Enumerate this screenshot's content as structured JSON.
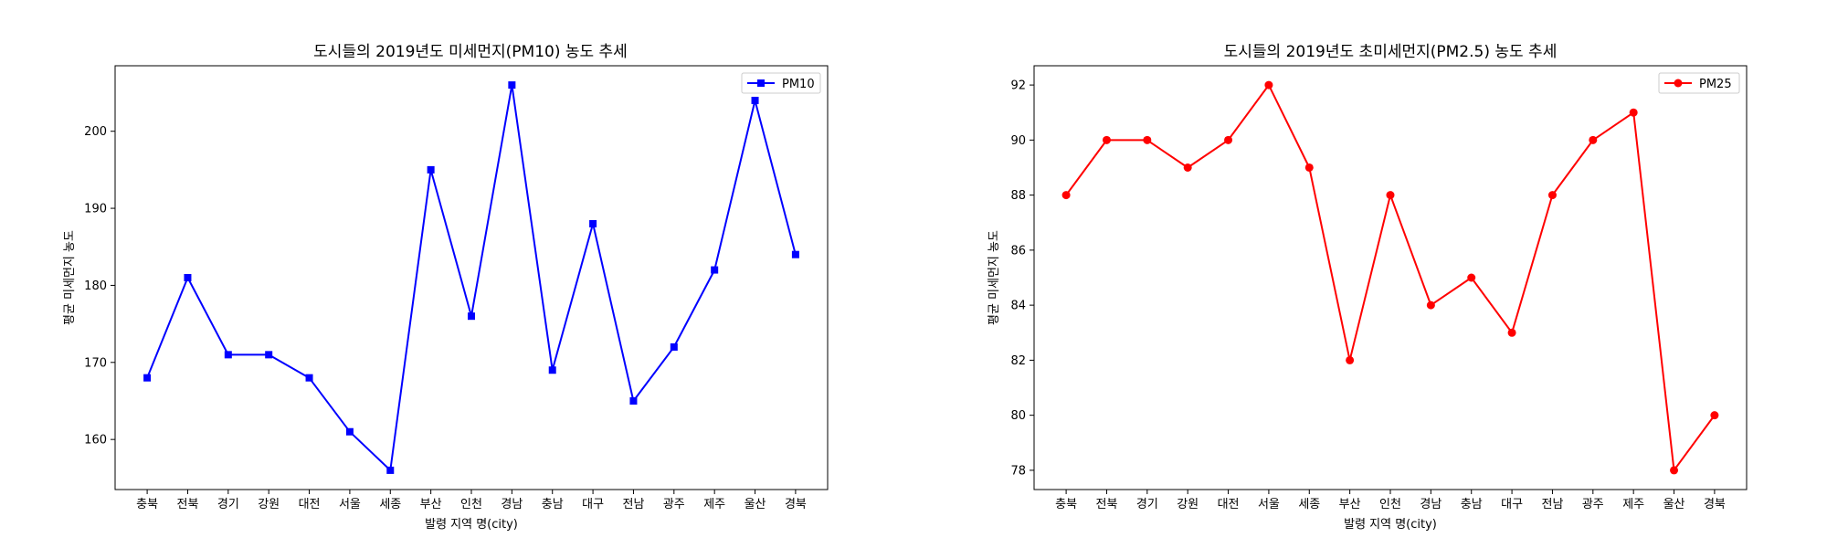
{
  "colors": {
    "pm10": "#0000ff",
    "pm25": "#ff0000",
    "axes": "#000000",
    "background": "#ffffff"
  },
  "chart_data": [
    {
      "type": "line",
      "title": "도시들의 2019년도 미세먼지(PM10) 농도 추세",
      "xlabel": "발령 지역 명(city)",
      "ylabel": "평균 미세먼지 농도",
      "categories": [
        "충북",
        "전북",
        "경기",
        "강원",
        "대전",
        "서울",
        "세종",
        "부산",
        "인천",
        "경남",
        "충남",
        "대구",
        "전남",
        "광주",
        "제주",
        "울산",
        "경북"
      ],
      "series": [
        {
          "name": "PM10",
          "values": [
            168,
            181,
            171,
            171,
            168,
            161,
            156,
            195,
            176,
            206,
            169,
            188,
            165,
            172,
            182,
            204,
            184
          ],
          "color": "#0000ff",
          "marker": "square"
        }
      ],
      "ylim": [
        153.5,
        208.5
      ],
      "yticks": [
        160,
        170,
        180,
        190,
        200
      ],
      "legend": "top-right",
      "grid": false
    },
    {
      "type": "line",
      "title": "도시들의 2019년도 초미세먼지(PM2.5) 농도 추세",
      "xlabel": "발령 지역 명(city)",
      "ylabel": "평균 미세먼지 농도",
      "categories": [
        "충북",
        "전북",
        "경기",
        "강원",
        "대전",
        "서울",
        "세종",
        "부산",
        "인천",
        "경남",
        "충남",
        "대구",
        "전남",
        "광주",
        "제주",
        "울산",
        "경북"
      ],
      "series": [
        {
          "name": "PM25",
          "values": [
            88,
            90,
            90,
            89,
            90,
            92,
            89,
            82,
            88,
            84,
            85,
            83,
            88,
            90,
            91,
            78,
            80
          ],
          "color": "#ff0000",
          "marker": "circle"
        }
      ],
      "ylim": [
        77.3,
        92.7
      ],
      "yticks": [
        78,
        80,
        82,
        84,
        86,
        88,
        90,
        92
      ],
      "legend": "top-right",
      "grid": false
    }
  ]
}
